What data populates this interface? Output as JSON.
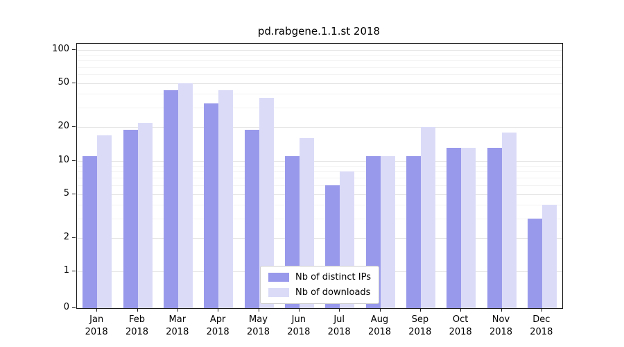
{
  "chart_data": {
    "type": "bar",
    "title": "pd.rabgene.1.1.st 2018",
    "categories": [
      "Jan",
      "Feb",
      "Mar",
      "Apr",
      "May",
      "Jun",
      "Jul",
      "Aug",
      "Sep",
      "Oct",
      "Nov",
      "Dec"
    ],
    "x_year_label": "2018",
    "series": [
      {
        "name": "Nb of distinct IPs",
        "color": "#9999eb",
        "values": [
          11,
          19,
          43,
          33,
          19,
          11,
          6,
          11,
          11,
          13,
          13,
          3
        ]
      },
      {
        "name": "Nb of downloads",
        "color": "#dbdbf8",
        "values": [
          17,
          22,
          50,
          43,
          37,
          16,
          8,
          11,
          20,
          13,
          18,
          4
        ]
      }
    ],
    "yticks": [
      0,
      1,
      2,
      5,
      10,
      20,
      50,
      100
    ],
    "minor_yticks": [
      3,
      4,
      6,
      7,
      8,
      9,
      30,
      40,
      60,
      70,
      80,
      90
    ],
    "ylim": [
      0,
      115
    ],
    "scale": "symlog",
    "grid": "horizontal",
    "legend_position": "lower center"
  }
}
